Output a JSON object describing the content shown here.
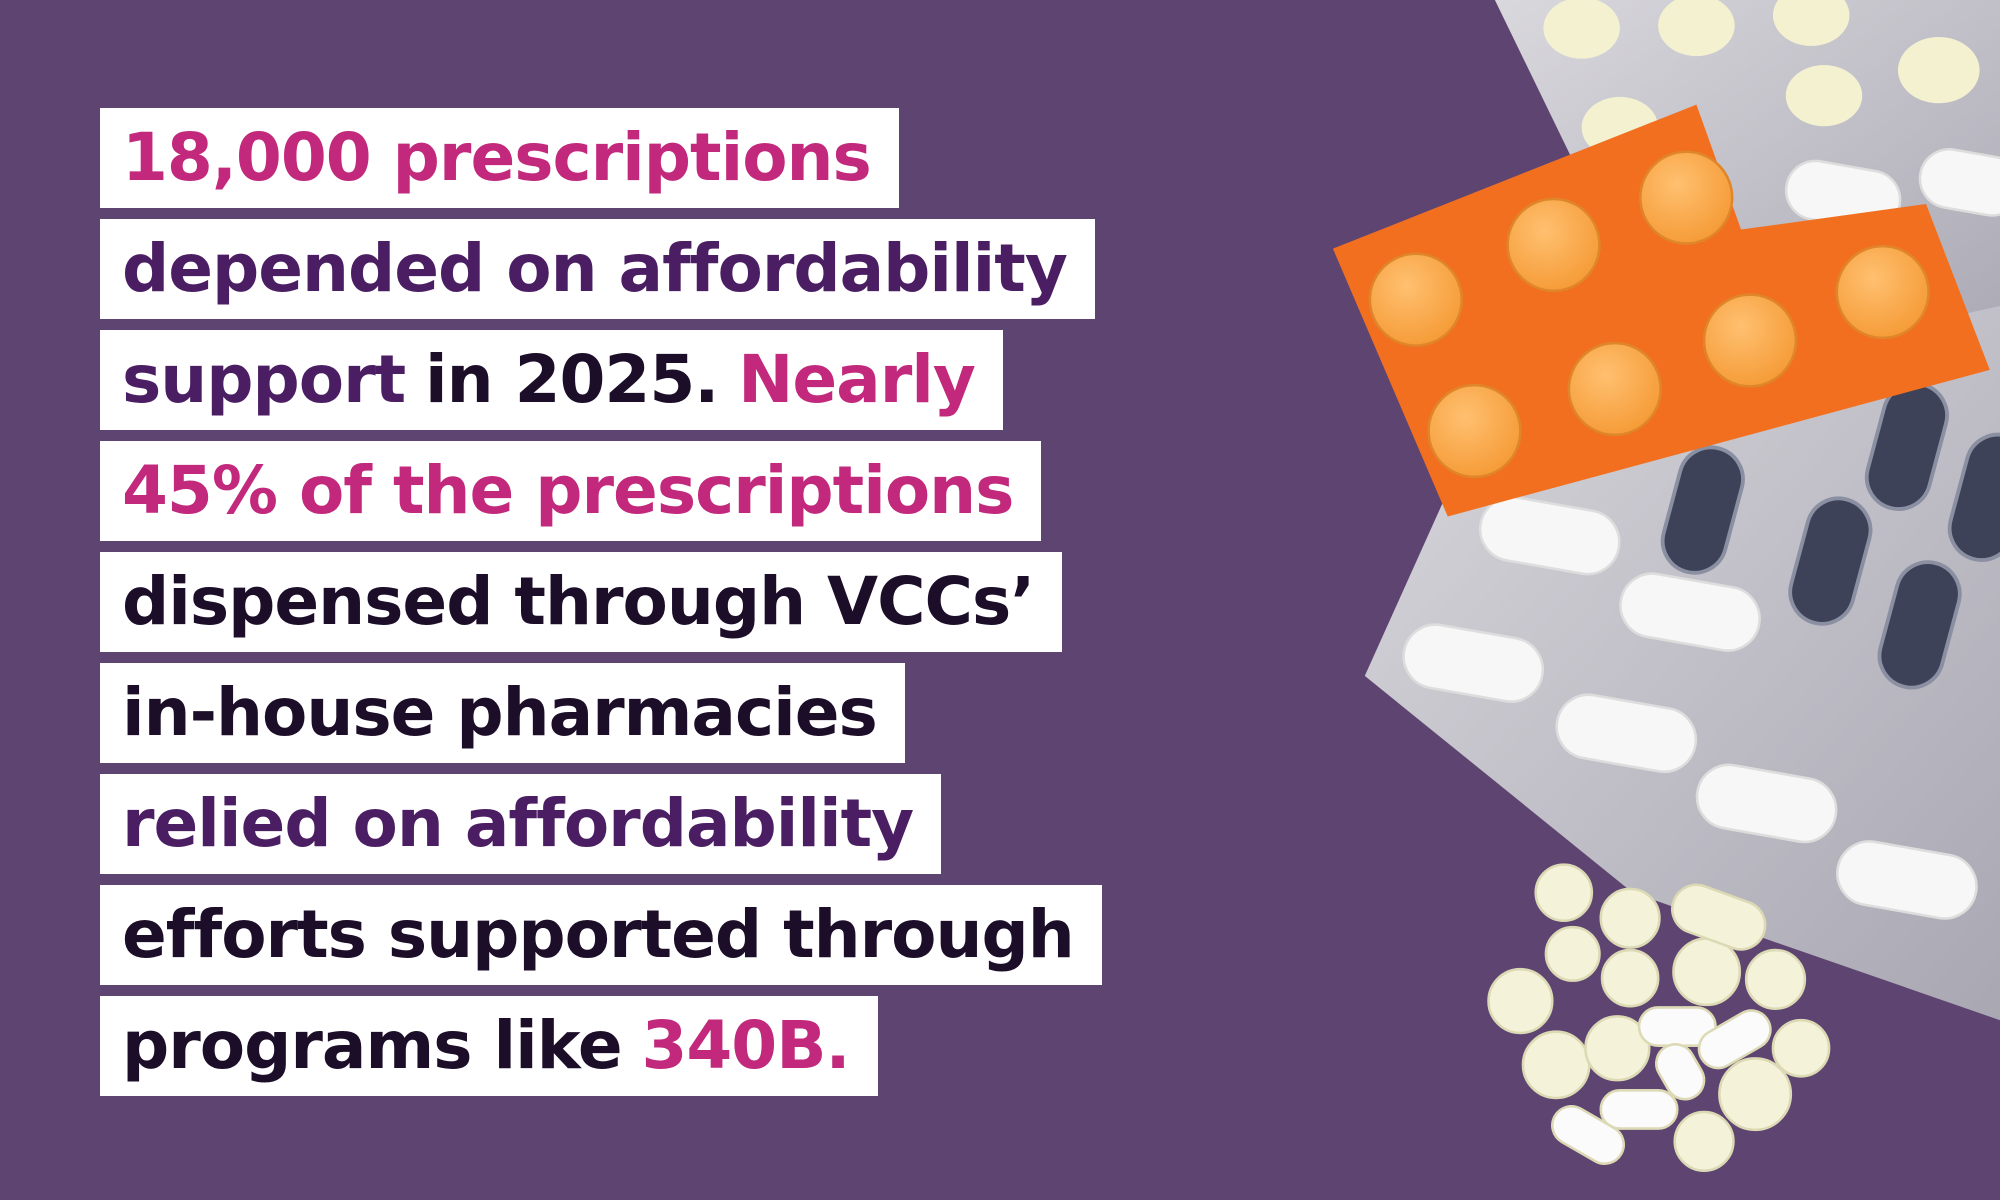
{
  "lines": [
    {
      "segments": [
        {
          "text": "18,000 prescriptions",
          "color": "#c2287c"
        }
      ]
    },
    {
      "segments": [
        {
          "text": "depended on affordability",
          "color": "#4b1e63"
        }
      ]
    },
    {
      "segments": [
        {
          "text": "support",
          "color": "#4b1e63"
        },
        {
          "text": "in 2025.",
          "color": "#1c0d28"
        },
        {
          "text": "Nearly",
          "color": "#c2287c"
        }
      ]
    },
    {
      "segments": [
        {
          "text": "45% of the prescriptions",
          "color": "#c2287c"
        }
      ]
    },
    {
      "segments": [
        {
          "text": "dispensed through VCCs’",
          "color": "#1c0d28"
        }
      ]
    },
    {
      "segments": [
        {
          "text": "in-house pharmacies",
          "color": "#1c0d28"
        }
      ]
    },
    {
      "segments": [
        {
          "text": "relied on affordability",
          "color": "#4b1e63"
        }
      ]
    },
    {
      "segments": [
        {
          "text": "efforts supported through",
          "color": "#1c0d28"
        }
      ]
    },
    {
      "segments": [
        {
          "text": "programs like",
          "color": "#1c0d28"
        },
        {
          "text": "340B.",
          "color": "#c2287c"
        }
      ]
    }
  ]
}
